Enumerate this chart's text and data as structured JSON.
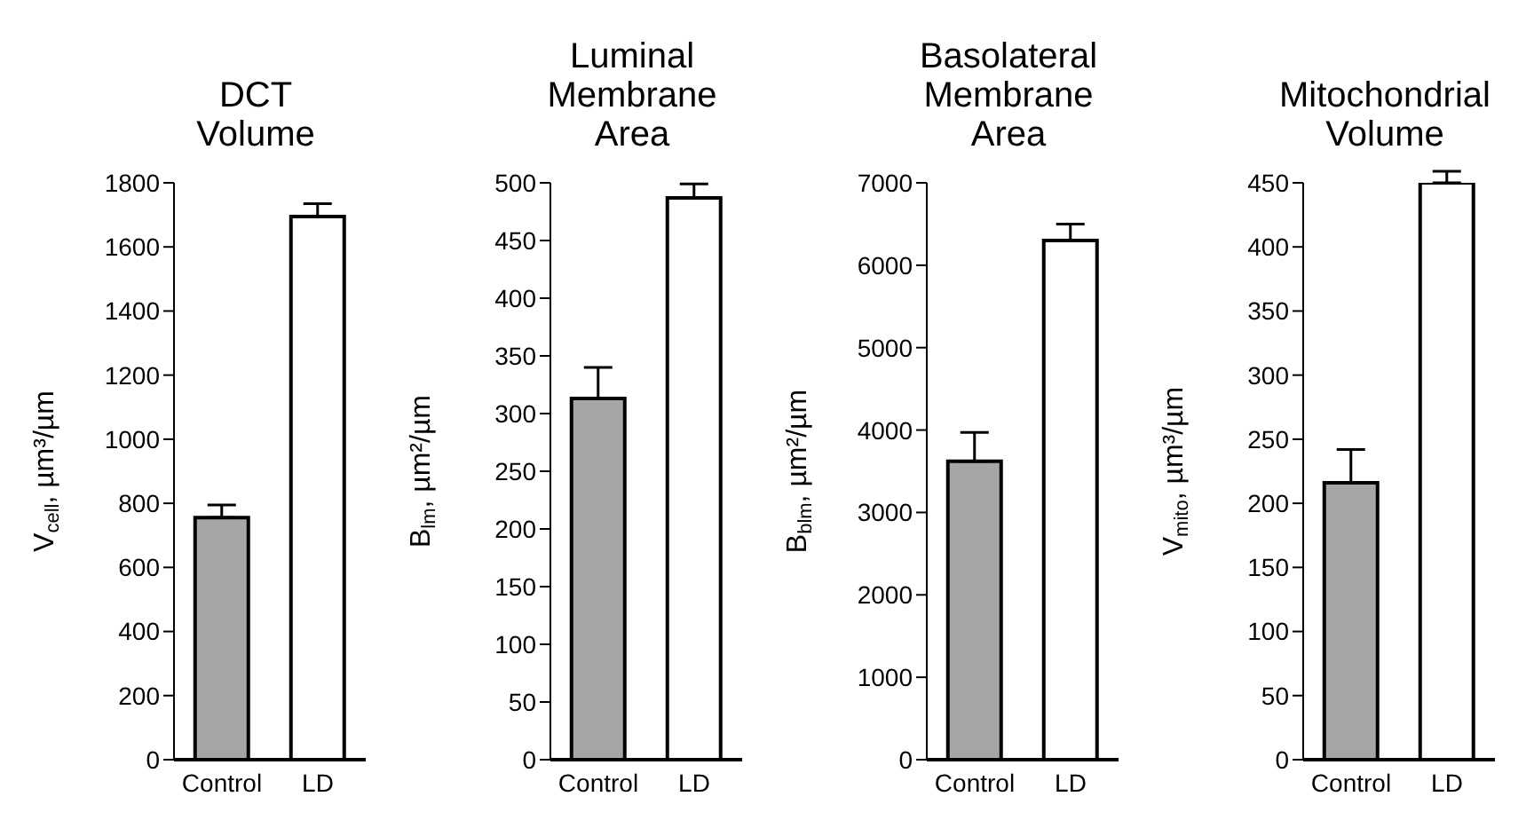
{
  "chart_data": [
    {
      "type": "bar",
      "title": "DCT\nVolume",
      "ylabel": "V$_{cell}$, µm³/µm",
      "categories": [
        "Control",
        "LD"
      ],
      "values": [
        755,
        1695
      ],
      "colors": [
        "#a6a6a6",
        "#ffffff"
      ],
      "errors": [
        [
          755,
          795
        ],
        [
          1695,
          1735
        ]
      ],
      "ylim": [
        0,
        1800
      ],
      "yticks": [
        0,
        200,
        400,
        600,
        800,
        1000,
        1200,
        1400,
        1600,
        1800
      ]
    },
    {
      "type": "bar",
      "title": "Luminal\nMembrane\nArea",
      "ylabel": "B$_{lm}$, µm²/µm",
      "categories": [
        "Control",
        "LD"
      ],
      "values": [
        313,
        487
      ],
      "colors": [
        "#a6a6a6",
        "#ffffff"
      ],
      "errors": [
        [
          313,
          340
        ],
        [
          487,
          499
        ]
      ],
      "ylim": [
        0,
        500
      ],
      "yticks": [
        0,
        50,
        100,
        150,
        200,
        250,
        300,
        350,
        400,
        450,
        500
      ]
    },
    {
      "type": "bar",
      "title": "Basolateral\nMembrane\nArea",
      "ylabel": "B$_{blm}$, µm²/µm",
      "categories": [
        "Control",
        "LD"
      ],
      "values": [
        3620,
        6300
      ],
      "colors": [
        "#a6a6a6",
        "#ffffff"
      ],
      "errors": [
        [
          3620,
          3970
        ],
        [
          6300,
          6500
        ]
      ],
      "ylim": [
        0,
        7000
      ],
      "yticks": [
        0,
        1000,
        2000,
        3000,
        4000,
        5000,
        6000,
        7000
      ]
    },
    {
      "type": "bar",
      "title": "Mitochondrial\nVolume",
      "ylabel": "V$_{mito}$, µm³/µm",
      "categories": [
        "Control",
        "LD"
      ],
      "values": [
        216,
        450
      ],
      "colors": [
        "#a6a6a6",
        "#ffffff"
      ],
      "errors": [
        [
          216,
          242
        ],
        [
          450,
          459
        ]
      ],
      "ylim": [
        0,
        450
      ],
      "yticks": [
        0,
        50,
        100,
        150,
        200,
        250,
        300,
        350,
        400,
        450
      ]
    }
  ]
}
